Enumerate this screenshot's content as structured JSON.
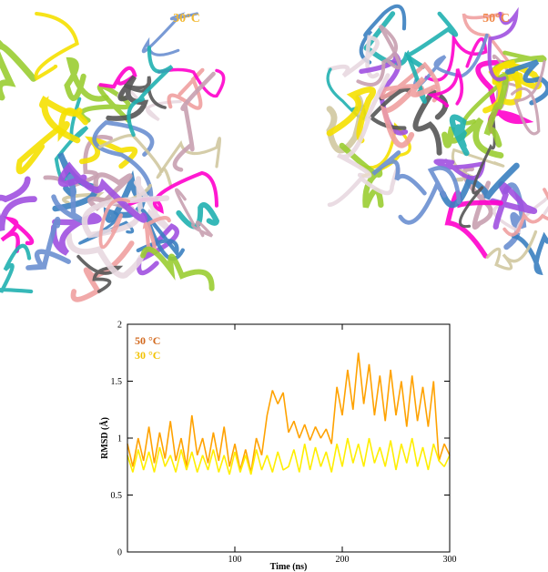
{
  "panel_labels": [
    "30°C",
    "50°C"
  ],
  "chart_data": {
    "type": "line",
    "x_label": "Time (ns)",
    "y_label": "RMSD (Å)",
    "xlim": [
      0,
      300
    ],
    "xticks": [
      100,
      200,
      300
    ],
    "ylim": [
      0,
      2
    ],
    "yticks": [
      0,
      0.5,
      1,
      1.5,
      2
    ],
    "legend": "upper left",
    "x": [
      0,
      5,
      10,
      15,
      20,
      25,
      30,
      35,
      40,
      45,
      50,
      55,
      60,
      65,
      70,
      75,
      80,
      85,
      90,
      95,
      100,
      105,
      110,
      115,
      120,
      125,
      130,
      135,
      140,
      145,
      150,
      155,
      160,
      165,
      170,
      175,
      180,
      185,
      190,
      195,
      200,
      205,
      210,
      215,
      220,
      225,
      230,
      235,
      240,
      245,
      250,
      255,
      260,
      265,
      270,
      275,
      280,
      285,
      290,
      295,
      300
    ],
    "series": [
      {
        "name": "50 °C",
        "color": "#ffa200",
        "label_color": "#d2691e",
        "values": [
          0.95,
          0.75,
          1.0,
          0.8,
          1.1,
          0.78,
          1.05,
          0.82,
          1.15,
          0.8,
          1.0,
          0.75,
          1.2,
          0.85,
          1.0,
          0.78,
          1.05,
          0.8,
          1.1,
          0.75,
          0.95,
          0.72,
          0.9,
          0.7,
          1.0,
          0.85,
          1.2,
          1.42,
          1.3,
          1.4,
          1.05,
          1.15,
          1.0,
          1.12,
          0.98,
          1.1,
          1.0,
          1.08,
          0.95,
          1.45,
          1.2,
          1.6,
          1.25,
          1.75,
          1.3,
          1.65,
          1.2,
          1.55,
          1.15,
          1.6,
          1.2,
          1.5,
          1.1,
          1.55,
          1.15,
          1.45,
          1.1,
          1.5,
          0.8,
          0.95,
          0.85
        ]
      },
      {
        "name": "30 °C",
        "color": "#ffee00",
        "label_color": "#f2c200",
        "values": [
          0.85,
          0.7,
          0.9,
          0.72,
          0.88,
          0.7,
          0.92,
          0.75,
          0.85,
          0.7,
          0.9,
          0.72,
          0.88,
          0.7,
          0.85,
          0.72,
          0.9,
          0.7,
          0.85,
          0.68,
          0.88,
          0.7,
          0.85,
          0.68,
          0.9,
          0.72,
          0.85,
          0.7,
          0.88,
          0.72,
          0.75,
          0.9,
          0.7,
          0.95,
          0.72,
          0.92,
          0.75,
          0.88,
          0.7,
          0.95,
          0.75,
          1.0,
          0.78,
          0.95,
          0.75,
          1.0,
          0.78,
          0.92,
          0.75,
          0.98,
          0.72,
          0.95,
          0.78,
          1.0,
          0.75,
          0.92,
          0.72,
          0.95,
          0.8,
          0.75,
          0.85
        ]
      }
    ]
  }
}
